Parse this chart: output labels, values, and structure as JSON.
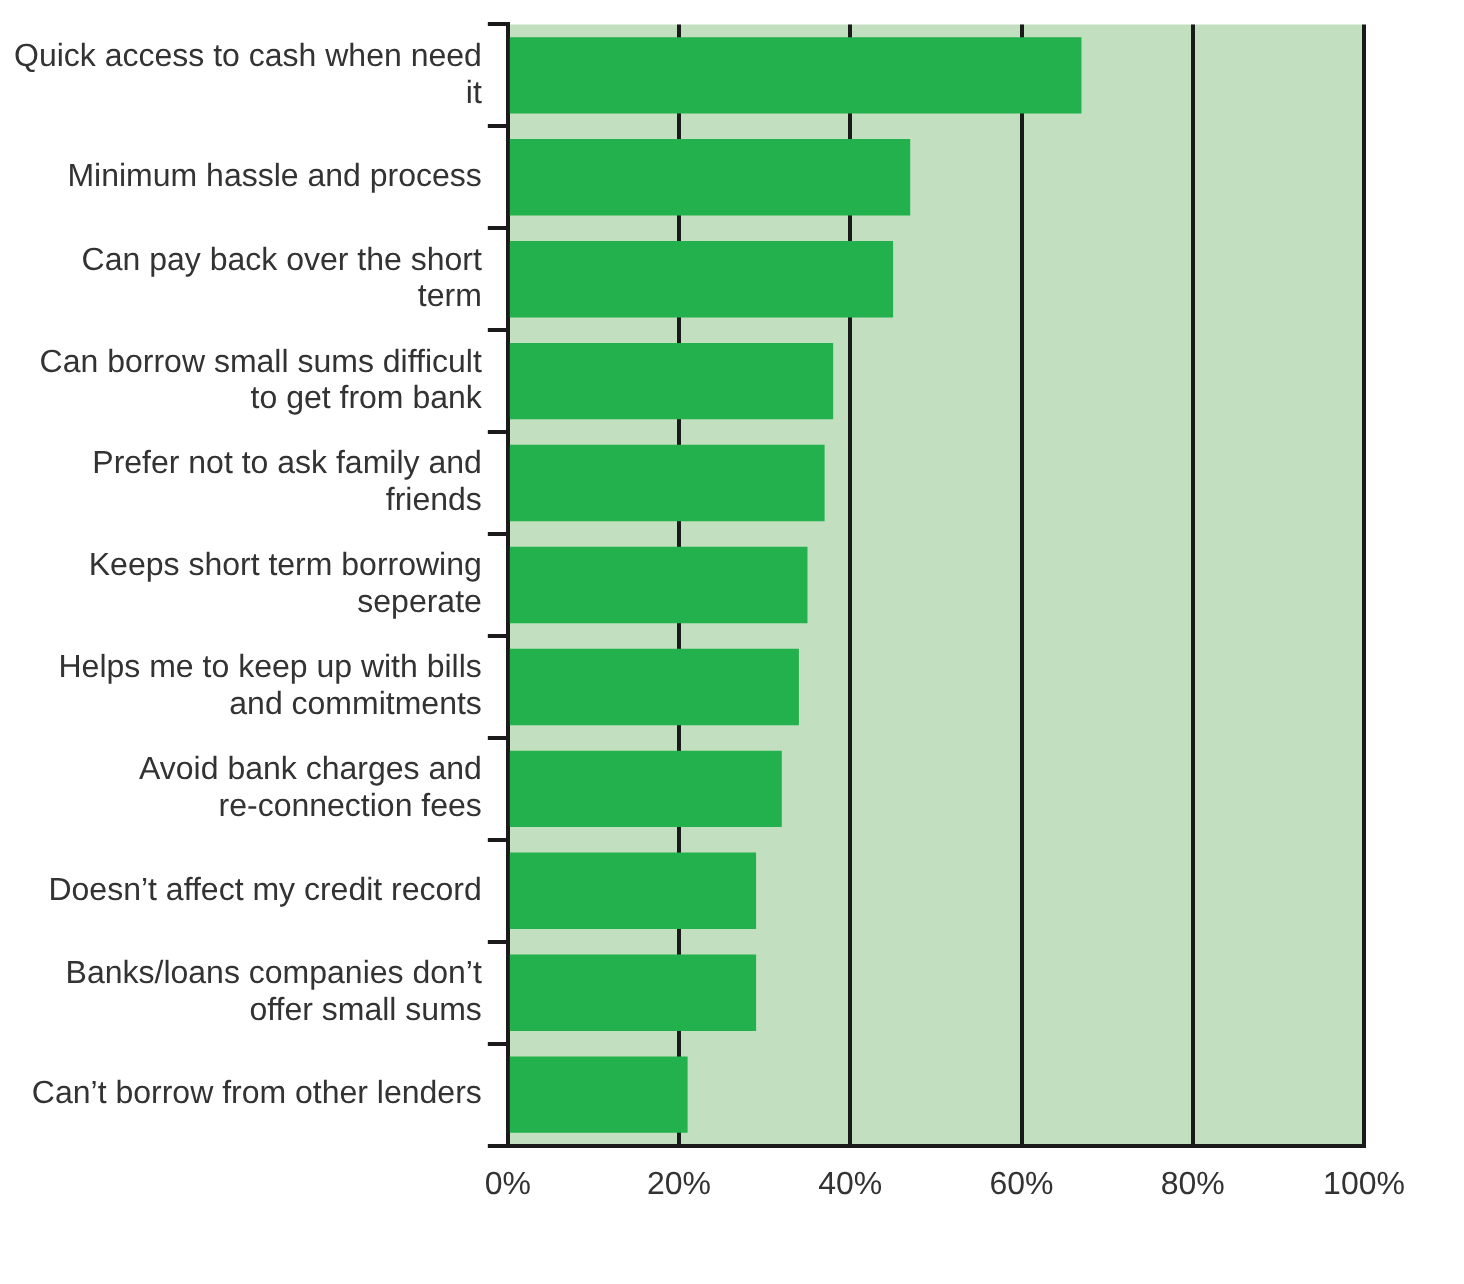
{
  "chart_data": {
    "type": "bar",
    "orientation": "horizontal",
    "categories": [
      "Quick access to cash when need it",
      "Minimum hassle and process",
      "Can pay back over the short term",
      "Can borrow small sums difficult to get from bank",
      "Prefer not to ask family and friends",
      "Keeps short term borrowing seperate",
      "Helps me to keep up with bills and commitments",
      "Avoid bank charges and re-connection fees",
      "Doesn’t affect my credit record",
      "Banks/loans companies don’t offer small sums",
      "Can’t borrow from other lenders"
    ],
    "values": [
      67,
      47,
      45,
      38,
      37,
      35,
      34,
      32,
      29,
      29,
      21
    ],
    "color": "#22b14c",
    "xlim": [
      0,
      100
    ],
    "xticks": [
      {
        "value": 0,
        "label": "0%"
      },
      {
        "value": 20,
        "label": "20%"
      },
      {
        "value": 40,
        "label": "40%"
      },
      {
        "value": 60,
        "label": "60%"
      },
      {
        "value": 80,
        "label": "80%"
      },
      {
        "value": 100,
        "label": "100%"
      }
    ],
    "grid": "x",
    "legend": false
  }
}
